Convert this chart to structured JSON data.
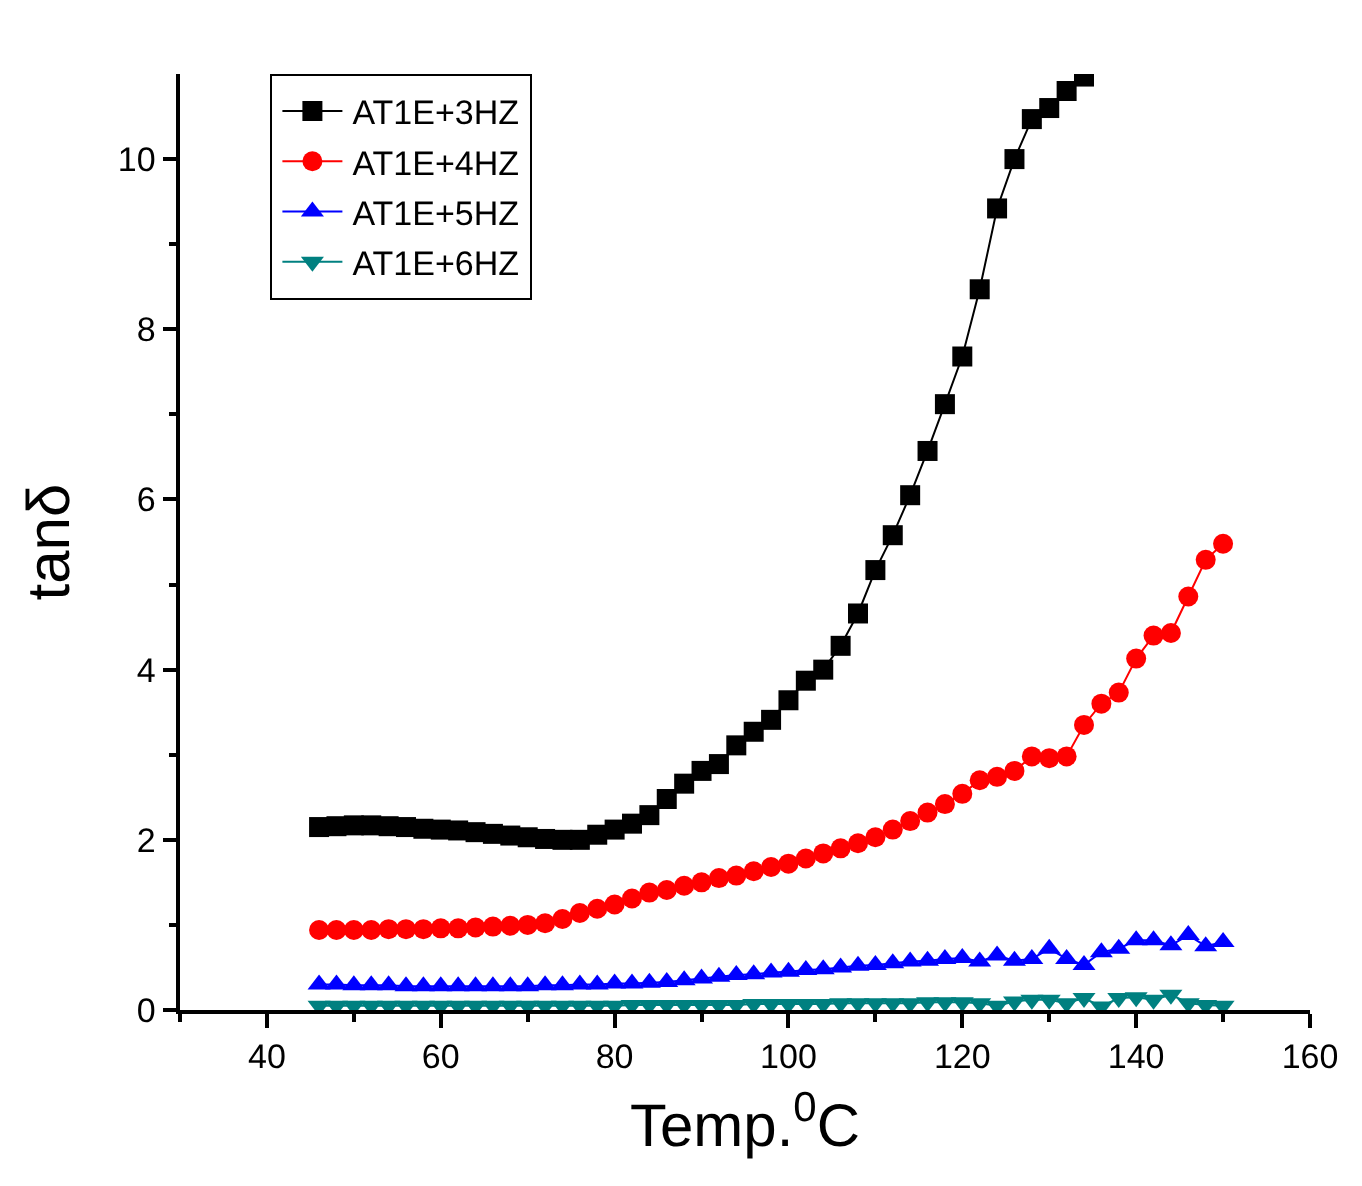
{
  "chart_data": {
    "type": "line",
    "xlabel": "Temp.$^{0}$C",
    "ylabel": "tanδ",
    "xlim": [
      30,
      160
    ],
    "ylim": [
      0,
      11
    ],
    "xticks": [
      {
        "value": 30,
        "label": null
      },
      40,
      {
        "value": 50,
        "label": null
      },
      60,
      {
        "value": 70,
        "label": null
      },
      80,
      {
        "value": 90,
        "label": null
      },
      100,
      {
        "value": 110,
        "label": null
      },
      120,
      {
        "value": 130,
        "label": null
      },
      140,
      {
        "value": 150,
        "label": null
      },
      160
    ],
    "yticks": [
      0,
      {
        "value": 1,
        "label": null
      },
      2,
      {
        "value": 3,
        "label": null
      },
      4,
      {
        "value": 5,
        "label": null
      },
      6,
      {
        "value": 7,
        "label": null
      },
      8,
      {
        "value": 9,
        "label": null
      },
      10
    ],
    "legend": "top left",
    "series": [
      {
        "name": "AT1E+3HZ",
        "color": "#000000",
        "marker": "square",
        "x": [
          46,
          48,
          50,
          52,
          54,
          56,
          58,
          60,
          62,
          64,
          66,
          68,
          70,
          72,
          74,
          76,
          78,
          80,
          82,
          84,
          86,
          88,
          90,
          92,
          94,
          96,
          98,
          100,
          102,
          104,
          106,
          108,
          110,
          112,
          114,
          116,
          118,
          120,
          122,
          124,
          126,
          128,
          130,
          132,
          134
        ],
        "values": [
          2.15,
          2.16,
          2.17,
          2.17,
          2.16,
          2.15,
          2.13,
          2.12,
          2.11,
          2.09,
          2.07,
          2.05,
          2.03,
          2.01,
          2.0,
          2.0,
          2.06,
          2.12,
          2.19,
          2.29,
          2.48,
          2.66,
          2.81,
          2.89,
          3.11,
          3.27,
          3.41,
          3.64,
          3.87,
          4.0,
          4.28,
          4.66,
          5.17,
          5.58,
          6.05,
          6.57,
          7.12,
          7.68,
          8.47,
          9.42,
          10.0,
          10.47,
          10.6,
          10.8,
          10.97
        ]
      },
      {
        "name": "AT1E+4HZ",
        "color": "#ff0000",
        "marker": "circle",
        "x": [
          46,
          48,
          50,
          52,
          54,
          56,
          58,
          60,
          62,
          64,
          66,
          68,
          70,
          72,
          74,
          76,
          78,
          80,
          82,
          84,
          86,
          88,
          90,
          92,
          94,
          96,
          98,
          100,
          102,
          104,
          106,
          108,
          110,
          112,
          114,
          116,
          118,
          120,
          122,
          124,
          126,
          128,
          130,
          132,
          134,
          136,
          138,
          140,
          142,
          144,
          146,
          148,
          150
        ],
        "values": [
          0.94,
          0.94,
          0.94,
          0.94,
          0.95,
          0.95,
          0.95,
          0.96,
          0.96,
          0.97,
          0.98,
          0.99,
          1.0,
          1.02,
          1.07,
          1.14,
          1.19,
          1.24,
          1.31,
          1.38,
          1.41,
          1.46,
          1.5,
          1.55,
          1.58,
          1.63,
          1.68,
          1.72,
          1.78,
          1.84,
          1.9,
          1.96,
          2.03,
          2.12,
          2.22,
          2.32,
          2.42,
          2.54,
          2.7,
          2.74,
          2.81,
          2.98,
          2.96,
          2.98,
          3.35,
          3.6,
          3.73,
          4.13,
          4.4,
          4.43,
          4.86,
          5.29,
          5.48
        ]
      },
      {
        "name": "AT1E+5HZ",
        "color": "#0000ff",
        "marker": "triangle",
        "x": [
          46,
          48,
          50,
          52,
          54,
          56,
          58,
          60,
          62,
          64,
          66,
          68,
          70,
          72,
          74,
          76,
          78,
          80,
          82,
          84,
          86,
          88,
          90,
          92,
          94,
          96,
          98,
          100,
          102,
          104,
          106,
          108,
          110,
          112,
          114,
          116,
          118,
          120,
          122,
          124,
          126,
          128,
          130,
          132,
          134,
          136,
          138,
          140,
          142,
          144,
          146,
          148,
          150
        ],
        "values": [
          0.3,
          0.3,
          0.29,
          0.29,
          0.29,
          0.28,
          0.28,
          0.28,
          0.28,
          0.28,
          0.28,
          0.28,
          0.28,
          0.29,
          0.29,
          0.3,
          0.3,
          0.31,
          0.31,
          0.32,
          0.33,
          0.35,
          0.37,
          0.39,
          0.41,
          0.42,
          0.44,
          0.45,
          0.47,
          0.48,
          0.5,
          0.52,
          0.53,
          0.55,
          0.57,
          0.58,
          0.6,
          0.61,
          0.57,
          0.64,
          0.58,
          0.6,
          0.72,
          0.6,
          0.53,
          0.68,
          0.72,
          0.82,
          0.82,
          0.76,
          0.88,
          0.75,
          0.8
        ]
      },
      {
        "name": "AT1E+6HZ",
        "color": "#008080",
        "marker": "triangle-down",
        "x": [
          46,
          48,
          50,
          52,
          54,
          56,
          58,
          60,
          62,
          64,
          66,
          68,
          70,
          72,
          74,
          76,
          78,
          80,
          82,
          84,
          86,
          88,
          90,
          92,
          94,
          96,
          98,
          100,
          102,
          104,
          106,
          108,
          110,
          112,
          114,
          116,
          118,
          120,
          122,
          124,
          126,
          128,
          130,
          132,
          134,
          136,
          138,
          140,
          142,
          144,
          146,
          148,
          150
        ],
        "values": [
          0.05,
          0.05,
          0.05,
          0.05,
          0.05,
          0.05,
          0.05,
          0.05,
          0.05,
          0.05,
          0.05,
          0.05,
          0.05,
          0.05,
          0.05,
          0.05,
          0.05,
          0.05,
          0.06,
          0.06,
          0.06,
          0.06,
          0.06,
          0.06,
          0.06,
          0.07,
          0.07,
          0.07,
          0.07,
          0.07,
          0.08,
          0.08,
          0.08,
          0.08,
          0.08,
          0.09,
          0.09,
          0.09,
          0.08,
          0.05,
          0.1,
          0.12,
          0.12,
          0.08,
          0.14,
          0.04,
          0.14,
          0.15,
          0.12,
          0.18,
          0.08,
          0.06,
          0.05
        ]
      }
    ]
  }
}
